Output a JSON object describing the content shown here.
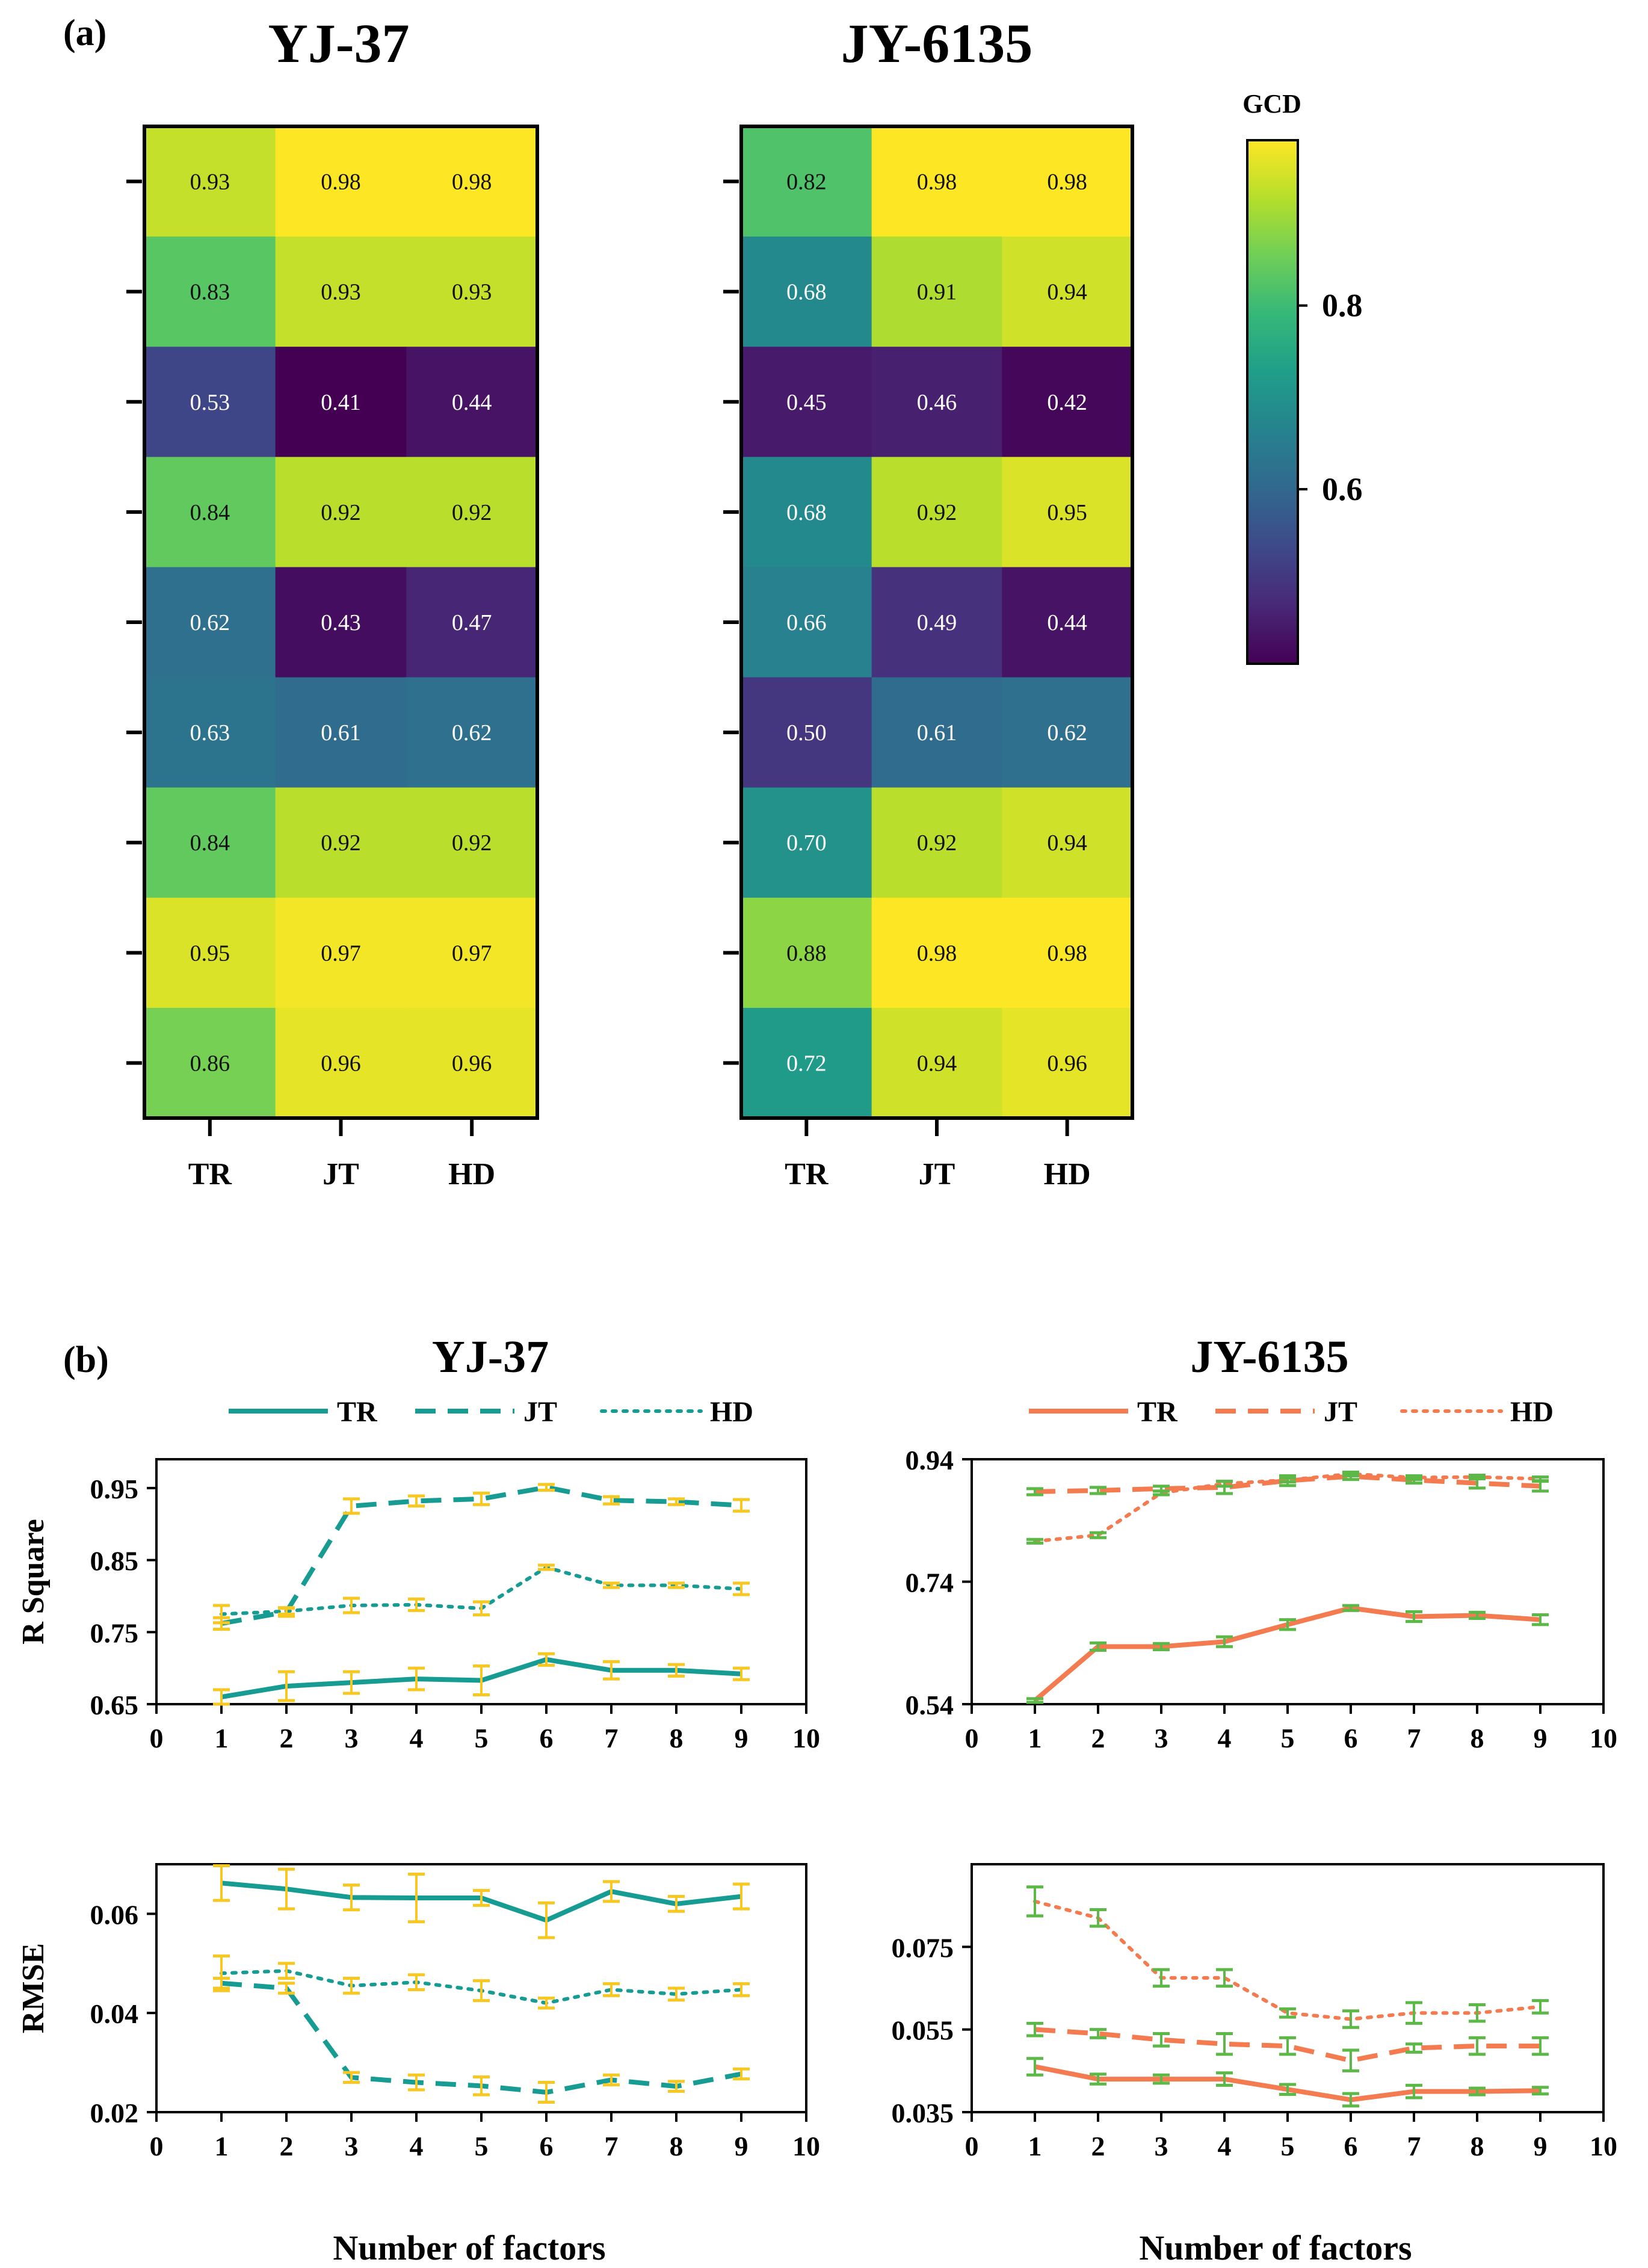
{
  "panel_labels": {
    "a": "(a)",
    "b": "(b)"
  },
  "heatmap_row_labels": [
    "",
    "",
    "",
    "",
    "",
    "",
    "",
    "",
    ""
  ],
  "colorbar": {
    "title": "GCD",
    "ticks": [
      0.8,
      0.6
    ],
    "tick_labels": [
      "0.8",
      "0.6"
    ],
    "range": [
      0.41,
      0.98
    ]
  },
  "colormap": [
    "#440154",
    "#482878",
    "#3e4989",
    "#31688e",
    "#26828e",
    "#1f9e89",
    "#35b779",
    "#6ece58",
    "#b5de2b",
    "#fde725"
  ],
  "line_colors": {
    "YJ-37": "#179c93",
    "JY-6135": "#f47a4f"
  },
  "error_bar_colors": {
    "YJ-37": "#f7c821",
    "JY-6135": "#5db947"
  },
  "legend": {
    "YJ-37": [
      "TR",
      "JT",
      "HD"
    ],
    "JY-6135": [
      "TR",
      "JT",
      "HD"
    ]
  },
  "chart_data": [
    {
      "type": "heatmap",
      "title": "YJ-37",
      "columns": [
        "TR",
        "JT",
        "HD"
      ],
      "values": [
        [
          0.93,
          0.98,
          0.98
        ],
        [
          0.83,
          0.93,
          0.93
        ],
        [
          0.53,
          0.41,
          0.44
        ],
        [
          0.84,
          0.92,
          0.92
        ],
        [
          0.62,
          0.43,
          0.47
        ],
        [
          0.63,
          0.61,
          0.62
        ],
        [
          0.84,
          0.92,
          0.92
        ],
        [
          0.95,
          0.97,
          0.97
        ],
        [
          0.86,
          0.96,
          0.96
        ]
      ],
      "value_labels": [
        [
          "0.93",
          "0.98",
          "0.98"
        ],
        [
          "0.83",
          "0.93",
          "0.93"
        ],
        [
          "0.53",
          "0.41",
          "0.44"
        ],
        [
          "0.84",
          "0.92",
          "0.92"
        ],
        [
          "0.62",
          "0.43",
          "0.47"
        ],
        [
          "0.63",
          "0.61",
          "0.62"
        ],
        [
          "0.84",
          "0.92",
          "0.92"
        ],
        [
          "0.95",
          "0.97",
          "0.97"
        ],
        [
          "0.86",
          "0.96",
          "0.96"
        ]
      ]
    },
    {
      "type": "heatmap",
      "title": "JY-6135",
      "columns": [
        "TR",
        "JT",
        "HD"
      ],
      "values": [
        [
          0.82,
          0.98,
          0.98
        ],
        [
          0.68,
          0.91,
          0.94
        ],
        [
          0.45,
          0.46,
          0.42
        ],
        [
          0.68,
          0.92,
          0.95
        ],
        [
          0.66,
          0.49,
          0.44
        ],
        [
          0.5,
          0.61,
          0.62
        ],
        [
          0.7,
          0.92,
          0.94
        ],
        [
          0.88,
          0.98,
          0.98
        ],
        [
          0.72,
          0.94,
          0.96
        ]
      ],
      "value_labels": [
        [
          "0.82",
          "0.98",
          "0.98"
        ],
        [
          "0.68",
          "0.91",
          "0.94"
        ],
        [
          "0.45",
          "0.46",
          "0.42"
        ],
        [
          "0.68",
          "0.92",
          "0.95"
        ],
        [
          "0.66",
          "0.49",
          "0.44"
        ],
        [
          "0.50",
          "0.61",
          "0.62"
        ],
        [
          "0.70",
          "0.92",
          "0.94"
        ],
        [
          "0.88",
          "0.98",
          "0.98"
        ],
        [
          "0.72",
          "0.94",
          "0.96"
        ]
      ]
    },
    {
      "type": "line",
      "title": "YJ-37",
      "xlabel": "",
      "ylabel": "R Square",
      "xlim": [
        0,
        10
      ],
      "ylim": [
        0.65,
        0.99
      ],
      "xticks": [
        0,
        1,
        2,
        3,
        4,
        5,
        6,
        7,
        8,
        9,
        10
      ],
      "yticks": [
        "0.65",
        "0.75",
        "0.85",
        "0.95"
      ],
      "x": [
        1,
        2,
        3,
        4,
        5,
        6,
        7,
        8,
        9
      ],
      "series": [
        {
          "name": "TR",
          "style": "solid",
          "values": [
            0.66,
            0.675,
            0.68,
            0.685,
            0.683,
            0.712,
            0.697,
            0.697,
            0.692
          ],
          "errors": [
            0.01,
            0.02,
            0.015,
            0.015,
            0.02,
            0.008,
            0.012,
            0.008,
            0.008
          ]
        },
        {
          "name": "JT",
          "style": "dashed",
          "values": [
            0.762,
            0.778,
            0.925,
            0.932,
            0.935,
            0.951,
            0.933,
            0.931,
            0.926
          ],
          "errors": [
            0.008,
            0.006,
            0.01,
            0.007,
            0.008,
            0.004,
            0.005,
            0.004,
            0.008
          ]
        },
        {
          "name": "HD",
          "style": "dotted",
          "values": [
            0.775,
            0.779,
            0.787,
            0.788,
            0.783,
            0.84,
            0.815,
            0.815,
            0.81
          ],
          "errors": [
            0.012,
            0.004,
            0.01,
            0.008,
            0.009,
            0.003,
            0.003,
            0.003,
            0.008
          ]
        }
      ]
    },
    {
      "type": "line",
      "title": "JY-6135",
      "xlabel": "",
      "ylabel": "",
      "xlim": [
        0,
        10
      ],
      "ylim": [
        0.54,
        0.94
      ],
      "xticks": [
        0,
        1,
        2,
        3,
        4,
        5,
        6,
        7,
        8,
        9,
        10
      ],
      "yticks": [
        "0.54",
        "0.74",
        "0.94"
      ],
      "x": [
        1,
        2,
        3,
        4,
        5,
        6,
        7,
        8,
        9
      ],
      "series": [
        {
          "name": "TR",
          "style": "solid",
          "values": [
            0.546,
            0.634,
            0.634,
            0.642,
            0.67,
            0.697,
            0.683,
            0.685,
            0.678
          ],
          "errors": [
            0.003,
            0.006,
            0.005,
            0.008,
            0.008,
            0.004,
            0.008,
            0.005,
            0.008
          ]
        },
        {
          "name": "JT",
          "style": "dashed",
          "values": [
            0.887,
            0.889,
            0.892,
            0.894,
            0.905,
            0.912,
            0.906,
            0.901,
            0.896
          ],
          "errors": [
            0.005,
            0.005,
            0.004,
            0.01,
            0.008,
            0.005,
            0.005,
            0.008,
            0.008
          ]
        },
        {
          "name": "HD",
          "style": "dotted",
          "values": [
            0.806,
            0.816,
            0.885,
            0.9,
            0.906,
            0.916,
            0.91,
            0.911,
            0.908
          ],
          "errors": [
            0.003,
            0.004,
            0.003,
            0.004,
            0.003,
            0.003,
            0.003,
            0.003,
            0.003
          ]
        }
      ]
    },
    {
      "type": "line",
      "title": "",
      "xlabel": "Number of factors",
      "ylabel": "RMSE",
      "xlim": [
        0,
        10
      ],
      "ylim": [
        0.02,
        0.07
      ],
      "xticks": [
        0,
        1,
        2,
        3,
        4,
        5,
        6,
        7,
        8,
        9,
        10
      ],
      "yticks": [
        "0.02",
        "0.04",
        "0.06"
      ],
      "x": [
        1,
        2,
        3,
        4,
        5,
        6,
        7,
        8,
        9
      ],
      "series": [
        {
          "name": "TR",
          "style": "solid",
          "values": [
            0.0662,
            0.065,
            0.0633,
            0.0632,
            0.0632,
            0.0587,
            0.0645,
            0.062,
            0.0635
          ],
          "errors": [
            0.0035,
            0.004,
            0.0025,
            0.0048,
            0.0015,
            0.0035,
            0.002,
            0.0015,
            0.0025
          ]
        },
        {
          "name": "JT",
          "style": "dashed",
          "values": [
            0.046,
            0.045,
            0.027,
            0.026,
            0.0253,
            0.024,
            0.0265,
            0.0252,
            0.0277
          ],
          "errors": [
            0.001,
            0.001,
            0.001,
            0.0015,
            0.0018,
            0.002,
            0.001,
            0.001,
            0.001
          ]
        },
        {
          "name": "HD",
          "style": "dotted",
          "values": [
            0.048,
            0.0485,
            0.0455,
            0.0462,
            0.0445,
            0.042,
            0.0447,
            0.0438,
            0.0447
          ],
          "errors": [
            0.0035,
            0.0015,
            0.0015,
            0.0015,
            0.002,
            0.001,
            0.0012,
            0.0012,
            0.0012
          ]
        }
      ]
    },
    {
      "type": "line",
      "title": "",
      "xlabel": "Number of factors",
      "ylabel": "",
      "xlim": [
        0,
        10
      ],
      "ylim": [
        0.035,
        0.095
      ],
      "xticks": [
        0,
        1,
        2,
        3,
        4,
        5,
        6,
        7,
        8,
        9,
        10
      ],
      "yticks": [
        "0.035",
        "0.055",
        "0.075"
      ],
      "x": [
        1,
        2,
        3,
        4,
        5,
        6,
        7,
        8,
        9
      ],
      "series": [
        {
          "name": "TR",
          "style": "solid",
          "values": [
            0.046,
            0.043,
            0.043,
            0.043,
            0.0405,
            0.038,
            0.04,
            0.04,
            0.0402
          ],
          "errors": [
            0.002,
            0.0012,
            0.001,
            0.0015,
            0.0012,
            0.0015,
            0.0015,
            0.0008,
            0.0008
          ]
        },
        {
          "name": "JT",
          "style": "dashed",
          "values": [
            0.055,
            0.054,
            0.0525,
            0.0515,
            0.051,
            0.0475,
            0.0505,
            0.051,
            0.051
          ],
          "errors": [
            0.0015,
            0.001,
            0.0015,
            0.0025,
            0.002,
            0.0025,
            0.001,
            0.002,
            0.002
          ]
        },
        {
          "name": "HD",
          "style": "dotted",
          "values": [
            0.086,
            0.082,
            0.0675,
            0.0675,
            0.059,
            0.0575,
            0.059,
            0.059,
            0.0605
          ],
          "errors": [
            0.0035,
            0.002,
            0.002,
            0.002,
            0.001,
            0.002,
            0.0025,
            0.002,
            0.0015
          ]
        }
      ]
    }
  ]
}
